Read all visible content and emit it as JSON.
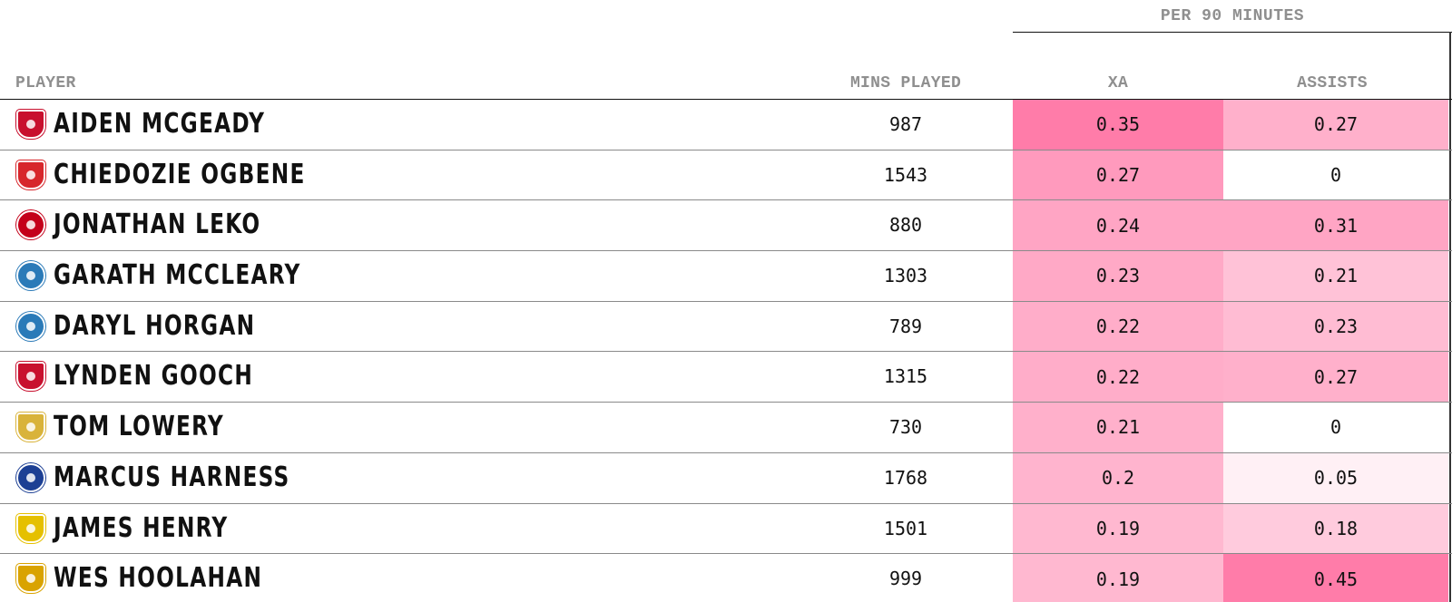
{
  "group_header": "PER 90 MINUTES",
  "columns": {
    "player": "PLAYER",
    "mins": "MINS PLAYED",
    "xa": "XA",
    "assists": "ASSISTS"
  },
  "colors": {
    "heat_max": "#ff7ca9",
    "heat_min": "#ffffff",
    "row_rule": "#8a8a8a",
    "header_text": "#8f8f8f"
  },
  "rows": [
    {
      "name": "AIDEN MCGEADY",
      "mins": "987",
      "xa": "0.35",
      "assists": "0.27",
      "crest": "sunderland-crest",
      "crest_color": "#c8102e",
      "crest_shape": "shield"
    },
    {
      "name": "CHIEDOZIE OGBENE",
      "mins": "1543",
      "xa": "0.27",
      "assists": "0",
      "crest": "rotherham-crest",
      "crest_color": "#d7262b",
      "crest_shape": "shield"
    },
    {
      "name": "JONATHAN LEKO",
      "mins": "880",
      "xa": "0.24",
      "assists": "0.31",
      "crest": "charlton-crest",
      "crest_color": "#c4001a",
      "crest_shape": "circle"
    },
    {
      "name": "GARATH MCCLEARY",
      "mins": "1303",
      "xa": "0.23",
      "assists": "0.21",
      "crest": "wycombe-crest",
      "crest_color": "#2a7ab8",
      "crest_shape": "circle"
    },
    {
      "name": "DARYL HORGAN",
      "mins": "789",
      "xa": "0.22",
      "assists": "0.23",
      "crest": "wycombe-crest",
      "crest_color": "#2a7ab8",
      "crest_shape": "circle"
    },
    {
      "name": "LYNDEN GOOCH",
      "mins": "1315",
      "xa": "0.22",
      "assists": "0.27",
      "crest": "sunderland-crest",
      "crest_color": "#c8102e",
      "crest_shape": "shield"
    },
    {
      "name": "TOM LOWERY",
      "mins": "730",
      "xa": "0.21",
      "assists": "0",
      "crest": "crewe-crest",
      "crest_color": "#d9b33a",
      "crest_shape": "shield"
    },
    {
      "name": "MARCUS HARNESS",
      "mins": "1768",
      "xa": "0.2",
      "assists": "0.05",
      "crest": "portsmouth-crest",
      "crest_color": "#1c3f94",
      "crest_shape": "circle"
    },
    {
      "name": "JAMES HENRY",
      "mins": "1501",
      "xa": "0.19",
      "assists": "0.18",
      "crest": "oxford-crest",
      "crest_color": "#e5c000",
      "crest_shape": "shield"
    },
    {
      "name": "WES HOOLAHAN",
      "mins": "999",
      "xa": "0.19",
      "assists": "0.45",
      "crest": "cambridge-crest",
      "crest_color": "#d9a300",
      "crest_shape": "shield"
    }
  ]
}
